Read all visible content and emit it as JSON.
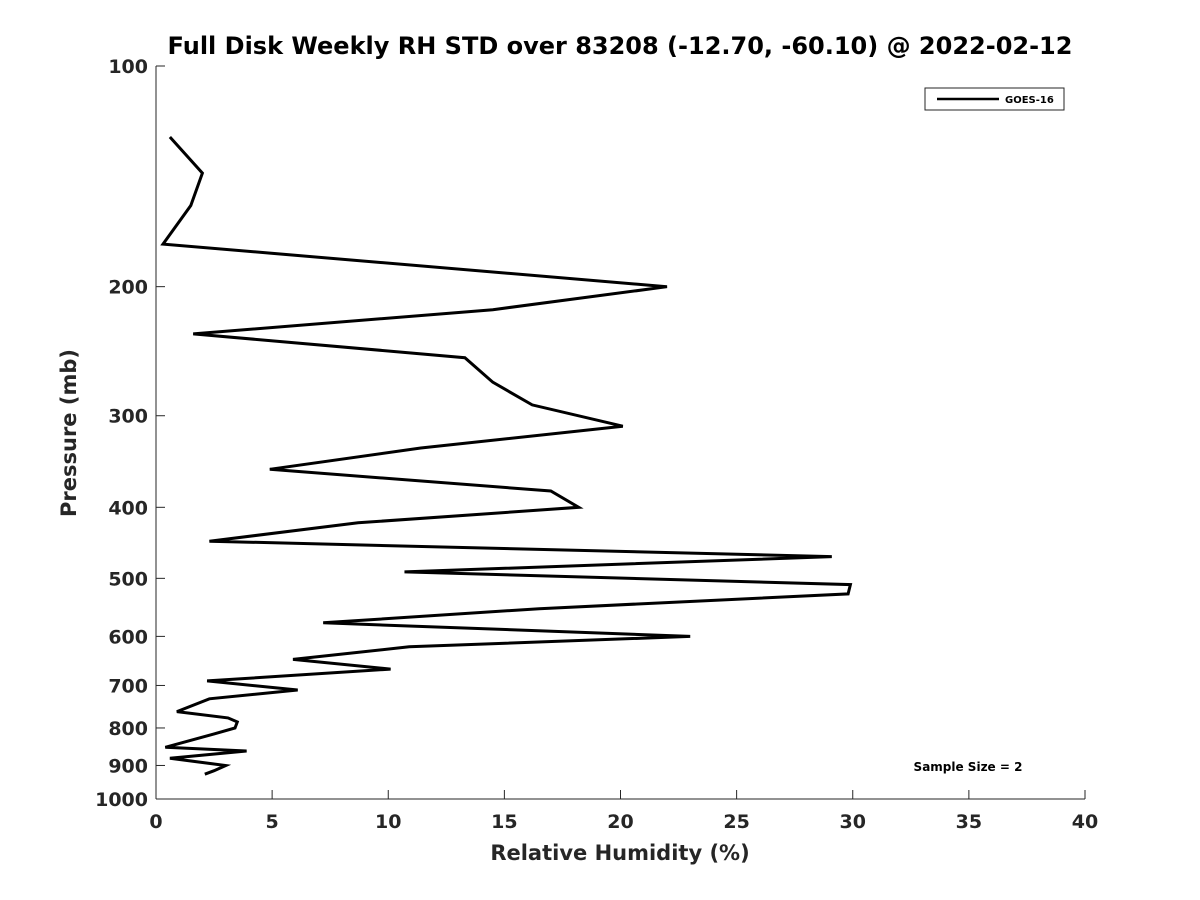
{
  "chart_data": {
    "type": "line",
    "title": "Full Disk Weekly RH STD over 83208 (-12.70, -60.10) @ 2022-02-12",
    "xlabel": "Relative Humidity (%)",
    "ylabel": "Pressure (mb)",
    "xlim": [
      0,
      40
    ],
    "ylim": [
      100,
      1000
    ],
    "y_scale": "log",
    "y_reversed": true,
    "x_ticks": [
      "0",
      "5",
      "10",
      "15",
      "20",
      "25",
      "30",
      "35",
      "40"
    ],
    "y_ticks": [
      "100",
      "200",
      "300",
      "400",
      "500",
      "600",
      "700",
      "800",
      "900",
      "1000"
    ],
    "grid": false,
    "legend_position": "top-right",
    "annotation": "Sample Size = 2",
    "series": [
      {
        "name": "GOES-16",
        "color": "#000000",
        "points": [
          [
            0.6,
            125
          ],
          [
            2.0,
            140
          ],
          [
            1.5,
            155
          ],
          [
            0.3,
            175
          ],
          [
            22.0,
            200
          ],
          [
            14.5,
            215
          ],
          [
            1.6,
            232
          ],
          [
            13.3,
            250
          ],
          [
            14.5,
            270
          ],
          [
            16.2,
            290
          ],
          [
            20.1,
            310
          ],
          [
            11.4,
            332
          ],
          [
            4.9,
            355
          ],
          [
            17.0,
            380
          ],
          [
            18.2,
            400
          ],
          [
            8.7,
            420
          ],
          [
            2.3,
            445
          ],
          [
            29.1,
            467
          ],
          [
            10.7,
            490
          ],
          [
            29.9,
            510
          ],
          [
            29.8,
            525
          ],
          [
            16.5,
            550
          ],
          [
            7.2,
            575
          ],
          [
            23.0,
            600
          ],
          [
            10.9,
            620
          ],
          [
            5.9,
            645
          ],
          [
            10.1,
            665
          ],
          [
            2.2,
            690
          ],
          [
            6.1,
            710
          ],
          [
            2.3,
            730
          ],
          [
            0.9,
            760
          ],
          [
            3.1,
            775
          ],
          [
            3.5,
            785
          ],
          [
            3.4,
            800
          ],
          [
            2.5,
            815
          ],
          [
            0.4,
            850
          ],
          [
            3.9,
            860
          ],
          [
            0.6,
            880
          ],
          [
            3.0,
            900
          ],
          [
            2.5,
            915
          ],
          [
            2.1,
            925
          ]
        ]
      }
    ]
  }
}
